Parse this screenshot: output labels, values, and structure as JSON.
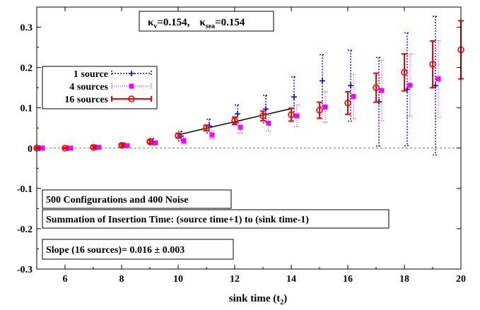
{
  "chart_data": {
    "type": "scatter",
    "title": "",
    "xlabel_main": "sink time (t",
    "xlabel_sub": "2",
    "xlabel_close": ")",
    "ylabel": "",
    "xlim": [
      5,
      20
    ],
    "ylim": [
      -0.3,
      0.35
    ],
    "xticks": [
      6,
      8,
      10,
      12,
      14,
      16,
      18,
      20
    ],
    "yticks": [
      -0.3,
      -0.2,
      -0.1,
      0,
      0.1,
      0.2,
      0.3
    ],
    "xtick_labels": [
      "6",
      "8",
      "10",
      "12",
      "14",
      "16",
      "18",
      "20"
    ],
    "ytick_labels": [
      "-0.3",
      "-0.2",
      "-0.1",
      "0",
      "0.1",
      "0.2",
      "0.3"
    ],
    "kappa": {
      "k_sym": "κ",
      "k_v_sub": "v",
      "k_v_val": "=0.154,",
      "k_sea_sub": "sea",
      "k_sea_val": "=0.154"
    },
    "annotations": [
      "500 Configurations and 400 Noise",
      "Summation of Insertion Time: (source time+1) to (sink time-1)",
      "Slope (16 sources)= 0.016 ± 0.003"
    ],
    "zero_line": {
      "y": 0,
      "color": "#00cc00"
    },
    "fit_line": {
      "x": [
        10,
        14
      ],
      "y": [
        0.033,
        0.098
      ],
      "color": "#000000"
    },
    "series": [
      {
        "name": "1 source",
        "color": "#0000ff",
        "marker": "plus",
        "offset": 0.1,
        "x": [
          5,
          6,
          7,
          8,
          9,
          10,
          11,
          12,
          13,
          14,
          15,
          16,
          17,
          18,
          19
        ],
        "y": [
          0.0,
          0.0,
          0.002,
          0.007,
          0.016,
          0.03,
          0.055,
          0.085,
          0.097,
          0.127,
          0.167,
          0.155,
          0.115,
          0.146,
          0.155
        ],
        "err": [
          0.002,
          0.002,
          0.003,
          0.005,
          0.008,
          0.012,
          0.017,
          0.022,
          0.034,
          0.05,
          0.065,
          0.088,
          0.11,
          0.14,
          0.172
        ]
      },
      {
        "name": "4 sources",
        "color": "#ff00ff",
        "marker": "square",
        "offset": 0.2,
        "x": [
          5,
          6,
          7,
          8,
          9,
          10,
          11,
          12,
          13,
          14,
          15,
          16,
          17,
          18,
          19
        ],
        "y": [
          0.0,
          0.0,
          0.002,
          0.006,
          0.013,
          0.018,
          0.033,
          0.052,
          0.062,
          0.08,
          0.102,
          0.128,
          0.143,
          0.156,
          0.172
        ],
        "err": [
          0.002,
          0.002,
          0.003,
          0.004,
          0.005,
          0.008,
          0.01,
          0.015,
          0.02,
          0.027,
          0.038,
          0.055,
          0.075,
          0.078,
          0.095
        ]
      },
      {
        "name": "16 sources",
        "color": "#ff0000",
        "marker": "circle",
        "offset": 0.0,
        "x": [
          5,
          6,
          7,
          8,
          9,
          10,
          11,
          12,
          13,
          14,
          15,
          16,
          17,
          18,
          19,
          20
        ],
        "y": [
          0.0,
          0.0,
          0.002,
          0.007,
          0.016,
          0.031,
          0.05,
          0.068,
          0.08,
          0.083,
          0.094,
          0.112,
          0.15,
          0.188,
          0.208,
          0.244
        ],
        "err": [
          0.002,
          0.002,
          0.003,
          0.003,
          0.004,
          0.005,
          0.007,
          0.009,
          0.012,
          0.016,
          0.02,
          0.028,
          0.036,
          0.046,
          0.058,
          0.072
        ]
      }
    ],
    "legend_position": "top-left"
  }
}
